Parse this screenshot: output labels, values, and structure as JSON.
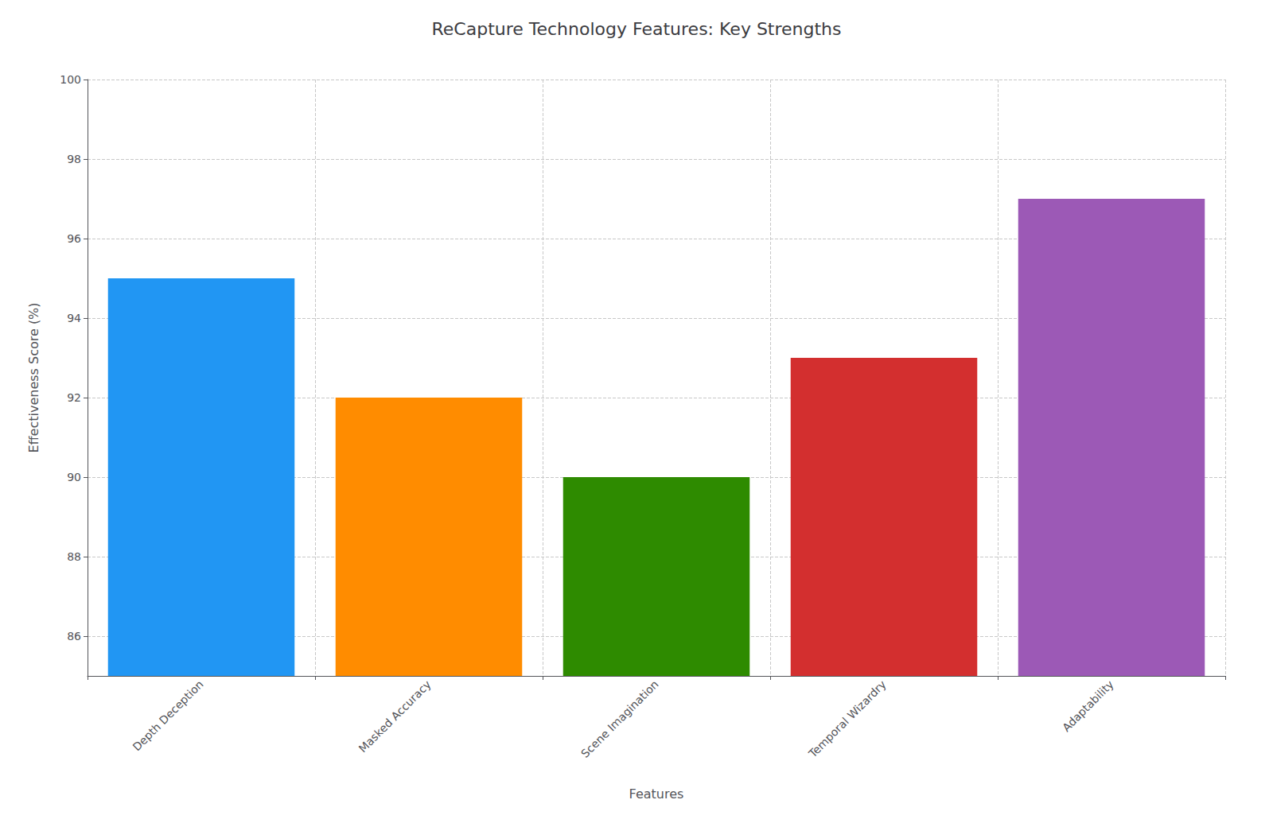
{
  "chart_data": {
    "type": "bar",
    "title": "ReCapture Technology Features: Key Strengths",
    "xlabel": "Features",
    "ylabel": "Effectiveness Score (%)",
    "categories": [
      "Depth Deception",
      "Masked Accuracy",
      "Scene Imagination",
      "Temporal Wizardry",
      "Adaptability"
    ],
    "values": [
      95,
      92,
      90,
      93,
      97
    ],
    "colors": [
      "#2196F3",
      "#FF8C00",
      "#2E8B00",
      "#D32F2F",
      "#9C59B6"
    ],
    "ylim": [
      85,
      100
    ],
    "yticks": [
      86,
      88,
      90,
      92,
      94,
      96,
      98,
      100
    ],
    "grid": true
  }
}
